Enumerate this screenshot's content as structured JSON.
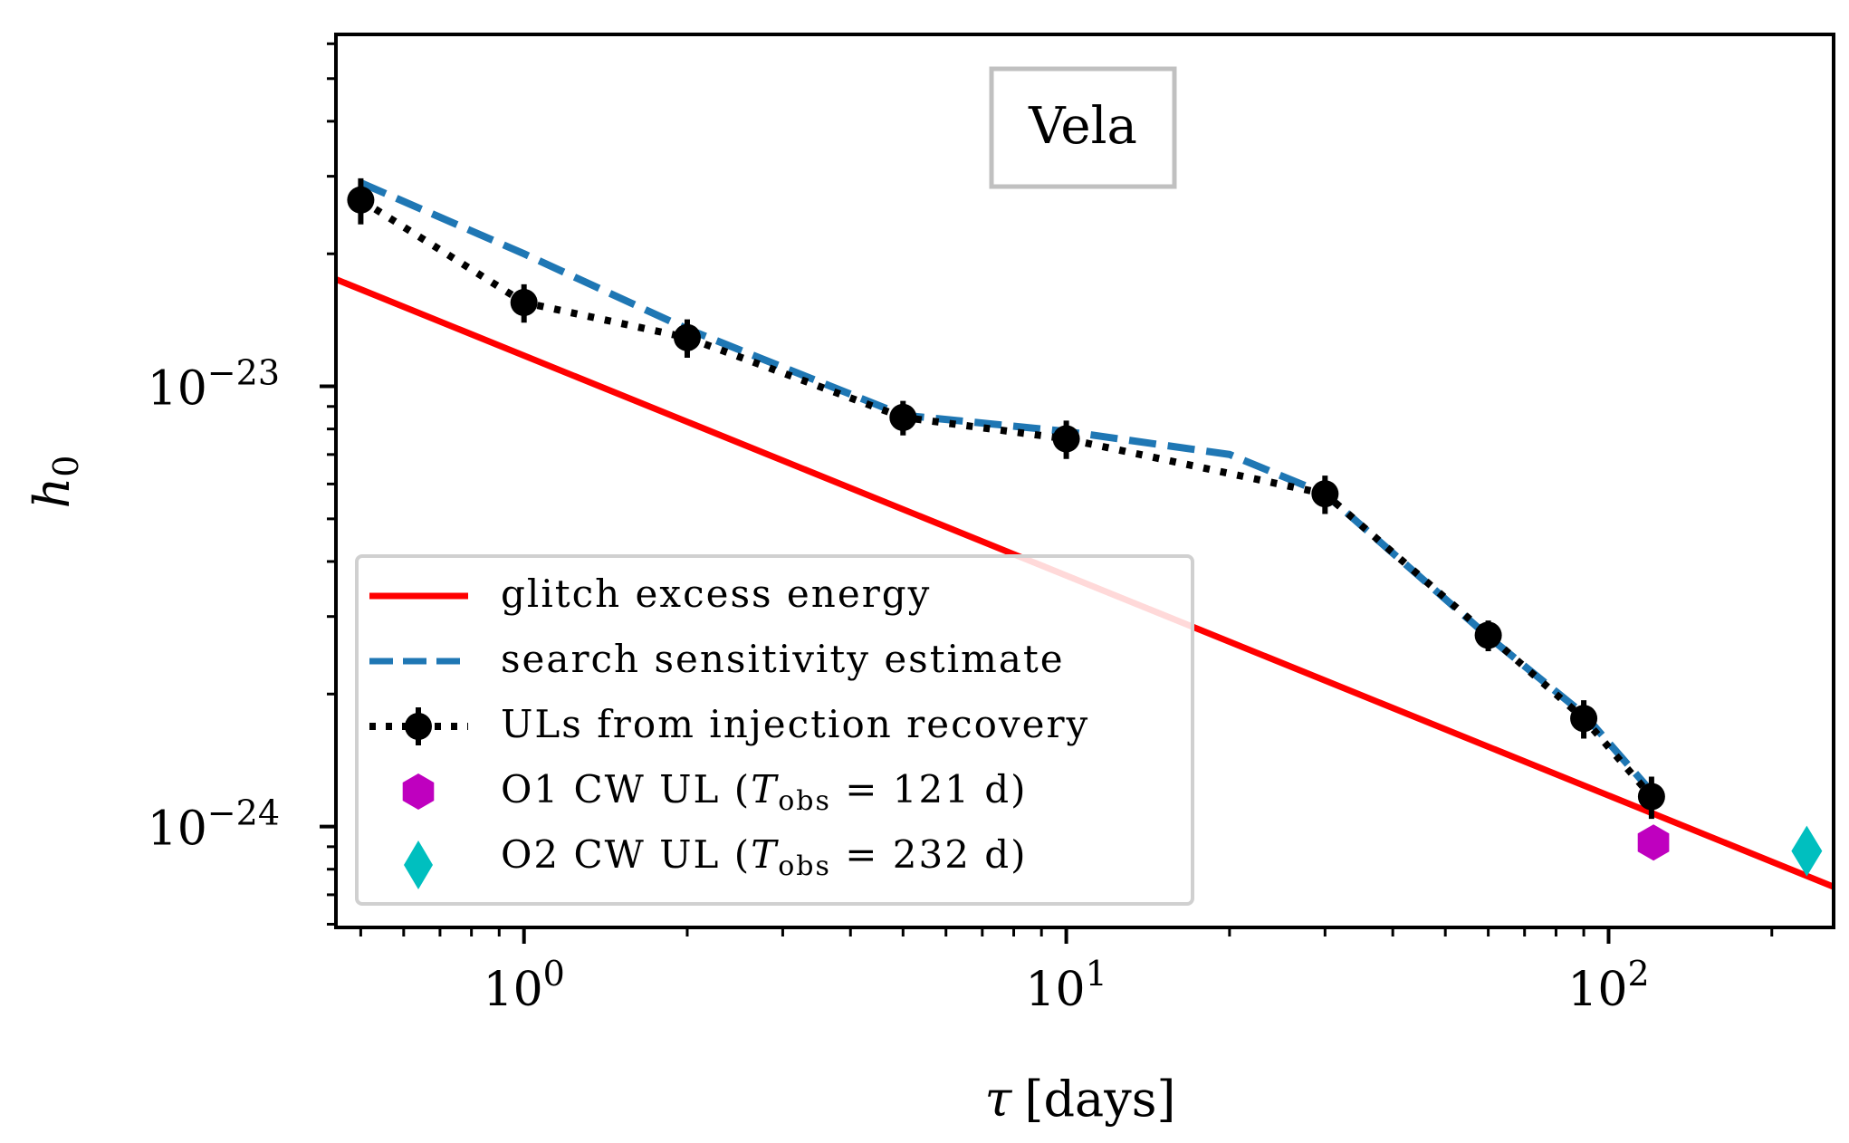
{
  "chart_data": {
    "type": "line",
    "title": "",
    "annotation": "Vela",
    "xlabel": "τ [days]",
    "ylabel": "h0",
    "xscale": "log",
    "yscale": "log",
    "xlim": [
      0.45,
      260
    ],
    "ylim": [
      5.9e-25,
      6.3e-23
    ],
    "x_ticks": [
      {
        "value": 1,
        "base": "10",
        "exp": "0"
      },
      {
        "value": 10,
        "base": "10",
        "exp": "1"
      },
      {
        "value": 100,
        "base": "10",
        "exp": "2"
      }
    ],
    "y_ticks": [
      {
        "value": 1e-23,
        "base": "10",
        "exp": "−23"
      },
      {
        "value": 1e-24,
        "base": "10",
        "exp": "−24"
      }
    ],
    "series": [
      {
        "name": "glitch excess energy",
        "style": "solid",
        "color": "#ff0000",
        "x": [
          0.45,
          260
        ],
        "y": [
          1.75e-23,
          7.3e-25
        ]
      },
      {
        "name": "search sensitivity estimate",
        "style": "dashed",
        "color": "#1f77b4",
        "x": [
          0.5,
          1,
          2,
          5,
          10,
          20,
          30,
          60,
          90,
          120
        ],
        "y": [
          2.9e-23,
          2e-23,
          1.35e-23,
          8.6e-24,
          7.9e-24,
          7e-24,
          5.7e-24,
          2.7e-24,
          1.8e-24,
          1.2e-24
        ]
      },
      {
        "name": "ULs from injection recovery",
        "style": "dotted-markers",
        "color": "#000000",
        "x": [
          0.5,
          1,
          2,
          5,
          10,
          30,
          60,
          90,
          120
        ],
        "y": [
          2.65e-23,
          1.55e-23,
          1.29e-23,
          8.5e-24,
          7.6e-24,
          5.7e-24,
          2.72e-24,
          1.76e-24,
          1.17e-24
        ],
        "yerr_frac": [
          0.12,
          0.1,
          0.1,
          0.09,
          0.1,
          0.1,
          0.08,
          0.1,
          0.11
        ]
      },
      {
        "name": "O1 CW UL (T_obs = 121 d)",
        "style": "marker-hexagon",
        "color": "#bf00bf",
        "x": [
          121
        ],
        "y": [
          9.2e-25
        ]
      },
      {
        "name": "O2 CW UL (T_obs = 232 d)",
        "style": "marker-diamond",
        "color": "#00bfbf",
        "x": [
          232
        ],
        "y": [
          8.8e-25
        ]
      }
    ],
    "legend": {
      "placement": "lower-left",
      "entries": [
        {
          "label": "glitch excess energy"
        },
        {
          "label": "search sensitivity estimate"
        },
        {
          "label": "ULs from injection recovery"
        },
        {
          "label_pre": "O1 CW UL (",
          "label_T": "T",
          "label_sub": "obs",
          "label_post": " = 121 d)"
        },
        {
          "label_pre": "O2 CW UL (",
          "label_T": "T",
          "label_sub": "obs",
          "label_post": " = 232 d)"
        }
      ]
    },
    "axis_labels": {
      "x_symbol": "τ",
      "x_unit": "[days]",
      "y_symbol": "h",
      "y_sub": "0"
    }
  }
}
